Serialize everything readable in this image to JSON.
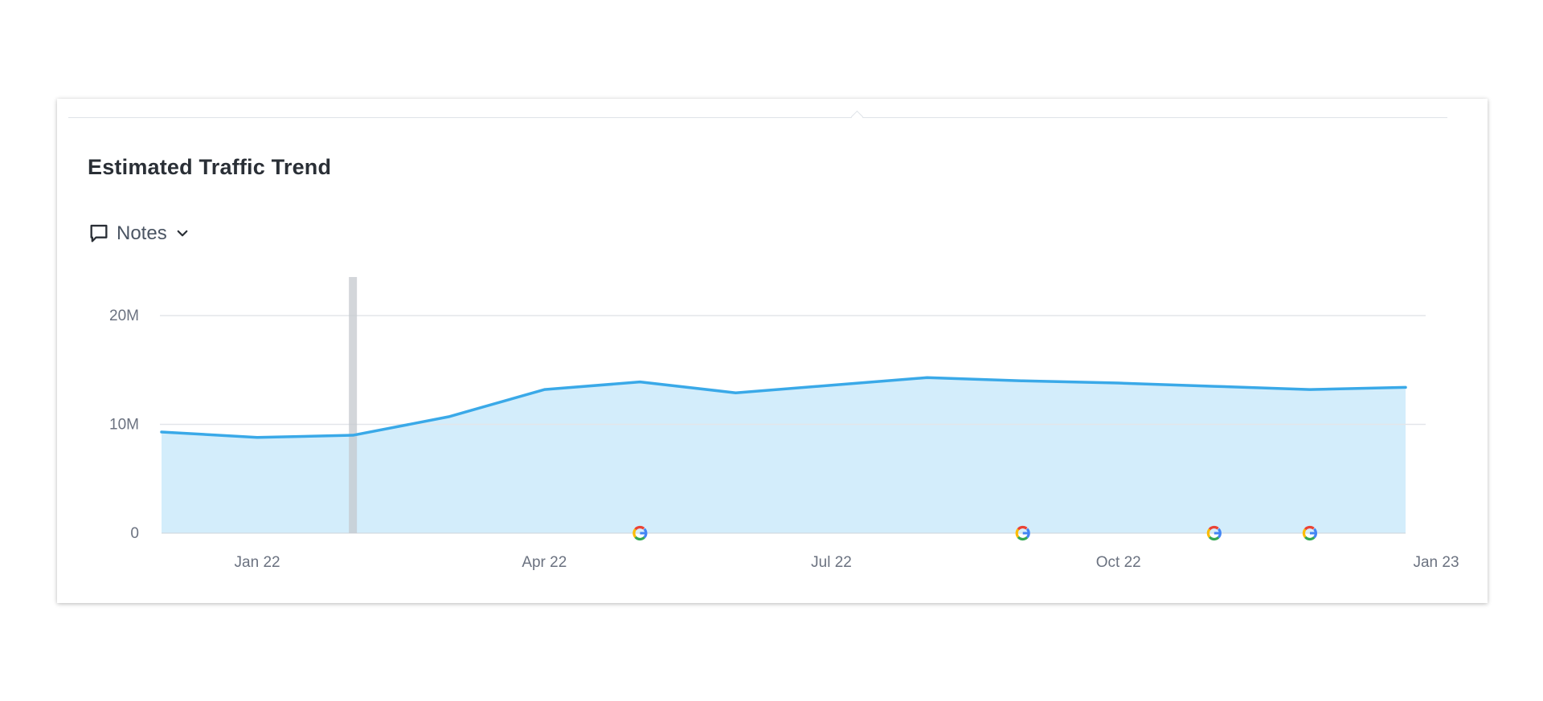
{
  "card": {
    "title": "Estimated Traffic Trend",
    "notes_label": "Notes"
  },
  "icons": {
    "notes": "speech-bubble-icon",
    "chevron": "chevron-down-icon",
    "marker": "google-update-icon"
  },
  "colors": {
    "line": "#3aa9e8",
    "area": "#d3edfb",
    "grid": "#e3e6ea",
    "highlight": "#c4c8cd"
  },
  "chart_data": {
    "type": "area",
    "title": "Estimated Traffic Trend",
    "xlabel": "",
    "ylabel": "",
    "x": [
      "2021-12",
      "2022-01",
      "2022-02",
      "2022-03",
      "2022-04",
      "2022-05",
      "2022-06",
      "2022-07",
      "2022-08",
      "2022-09",
      "2022-10",
      "2022-11",
      "2022-12",
      "2023-01"
    ],
    "values": [
      9.3,
      8.8,
      9.0,
      10.7,
      13.2,
      13.9,
      12.9,
      13.6,
      14.3,
      14.0,
      13.8,
      13.5,
      13.2,
      13.4
    ],
    "ylim": [
      0,
      20
    ],
    "y_ticks": [
      {
        "value": 0,
        "label": "0"
      },
      {
        "value": 10,
        "label": "10M"
      },
      {
        "value": 20,
        "label": "20M"
      }
    ],
    "x_ticks": [
      {
        "x": "2022-01",
        "label": "Jan 22"
      },
      {
        "x": "2022-04",
        "label": "Apr 22"
      },
      {
        "x": "2022-07",
        "label": "Jul 22"
      },
      {
        "x": "2022-10",
        "label": "Oct 22"
      },
      {
        "x": "2023-01",
        "label": "Jan 23"
      }
    ],
    "highlight_x": "2022-02",
    "event_markers": [
      {
        "x": 5.0,
        "label": "G"
      },
      {
        "x": 9.0,
        "label": "G"
      },
      {
        "x": 11.0,
        "label": "G"
      },
      {
        "x": 12.0,
        "label": "G"
      }
    ],
    "grid": true,
    "legend": "none"
  }
}
